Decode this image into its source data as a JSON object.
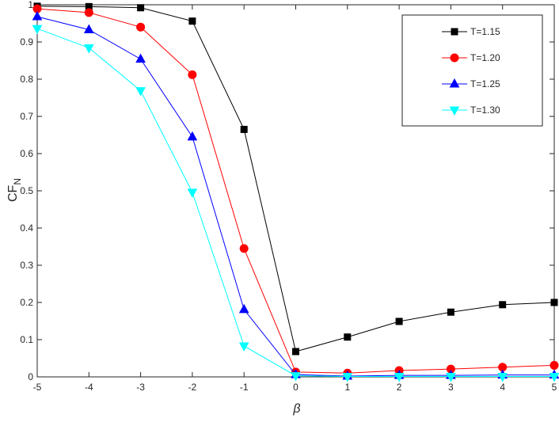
{
  "chart_data": {
    "type": "line",
    "title": "",
    "xlabel": "β",
    "ylabel_main": "CF",
    "ylabel_sub": "N",
    "x": [
      -5,
      -4,
      -3,
      -2,
      -1,
      0,
      1,
      2,
      3,
      4,
      5
    ],
    "xlim": [
      -5,
      5
    ],
    "ylim": [
      0,
      1
    ],
    "xticks": [
      "-5",
      "-4",
      "-3",
      "-2",
      "-1",
      "0",
      "1",
      "2",
      "3",
      "4",
      "5"
    ],
    "yticks": [
      "0",
      "0.1",
      "0.2",
      "0.3",
      "0.4",
      "0.5",
      "0.6",
      "0.7",
      "0.8",
      "0.9",
      "1"
    ],
    "grid": false,
    "legend_position": "top-right",
    "series": [
      {
        "name": "T=1.15",
        "color": "#000000",
        "marker": "square",
        "values": [
          0.996,
          0.995,
          0.992,
          0.956,
          0.665,
          0.068,
          0.107,
          0.149,
          0.174,
          0.194,
          0.2
        ]
      },
      {
        "name": "T=1.20",
        "color": "#ff0000",
        "marker": "circle",
        "values": [
          0.989,
          0.979,
          0.94,
          0.812,
          0.345,
          0.013,
          0.01,
          0.017,
          0.021,
          0.026,
          0.031
        ]
      },
      {
        "name": "T=1.25",
        "color": "#0000ff",
        "marker": "triangle-up",
        "values": [
          0.968,
          0.933,
          0.854,
          0.645,
          0.181,
          0.006,
          0.002,
          0.004,
          0.004,
          0.005,
          0.005
        ]
      },
      {
        "name": "T=1.30",
        "color": "#00ffff",
        "marker": "triangle-down",
        "values": [
          0.936,
          0.884,
          0.769,
          0.496,
          0.083,
          0.003,
          0.001,
          0.001,
          0.001,
          0.001,
          0.001
        ]
      }
    ]
  }
}
